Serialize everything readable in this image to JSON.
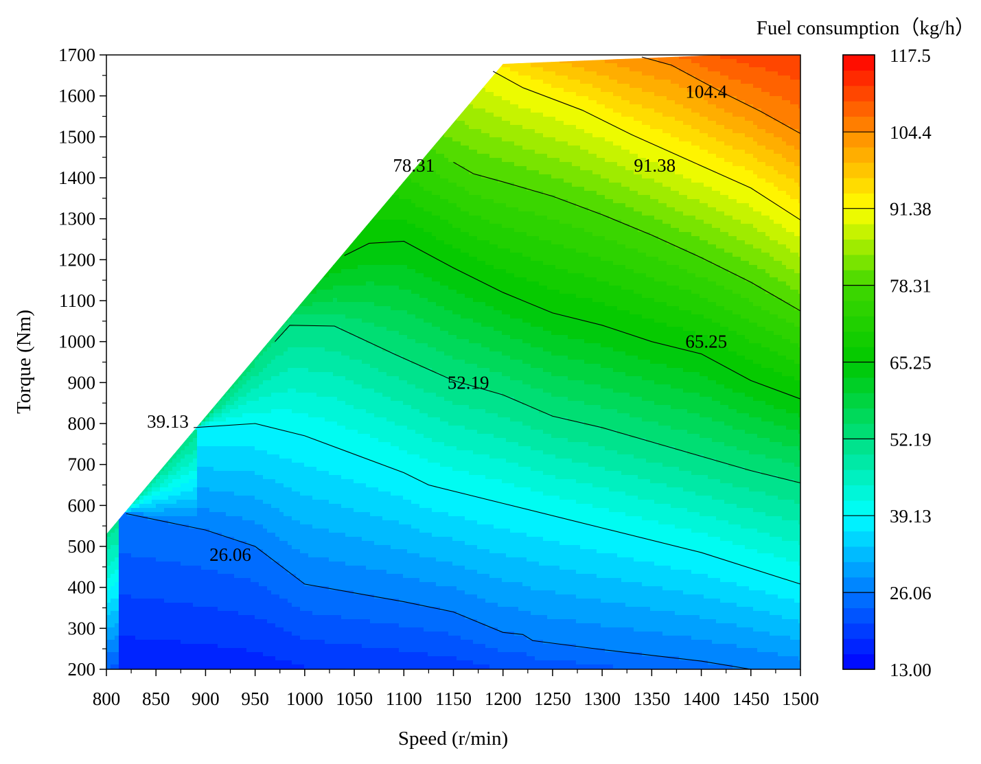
{
  "chart_data": {
    "type": "heatmap",
    "subtype": "filled-contour",
    "xlabel": "Speed (r/min)",
    "ylabel": "Torque (Nm)",
    "xlim": [
      800,
      1500
    ],
    "ylim": [
      200,
      1700
    ],
    "x_ticks": [
      "800",
      "850",
      "900",
      "950",
      "1000",
      "1050",
      "1100",
      "1150",
      "1200",
      "1250",
      "1300",
      "1350",
      "1400",
      "1450",
      "1500"
    ],
    "y_ticks": [
      "200",
      "300",
      "400",
      "500",
      "600",
      "700",
      "800",
      "900",
      "1000",
      "1100",
      "1200",
      "1300",
      "1400",
      "1500",
      "1600",
      "1700"
    ],
    "colorbar": {
      "title": "Fuel consumption（kg/h）",
      "min": 13.0,
      "max": 117.5,
      "tick_values": [
        13.0,
        26.06,
        39.13,
        52.19,
        65.25,
        78.31,
        91.38,
        104.4,
        117.5
      ],
      "tick_labels": [
        "13.00",
        "26.06",
        "39.13",
        "52.19",
        "65.25",
        "78.31",
        "91.38",
        "104.4",
        "117.5"
      ],
      "colors": [
        "#0000ff",
        "#0078ff",
        "#00ffff",
        "#00e080",
        "#00c800",
        "#40d800",
        "#ffff00",
        "#ff8c00",
        "#ff0000"
      ]
    },
    "boundary": [
      [
        800,
        200
      ],
      [
        800,
        530
      ],
      [
        1200,
        1678
      ],
      [
        1500,
        1708
      ],
      [
        1500,
        200
      ]
    ],
    "contours": [
      {
        "level": 26.06,
        "label": "26.06",
        "label_at": [
          925,
          480
        ],
        "points": [
          [
            820,
            580
          ],
          [
            900,
            540
          ],
          [
            950,
            500
          ],
          [
            1000,
            408
          ],
          [
            1100,
            365
          ],
          [
            1150,
            340
          ],
          [
            1200,
            290
          ],
          [
            1220,
            285
          ],
          [
            1230,
            270
          ],
          [
            1300,
            248
          ],
          [
            1400,
            220
          ],
          [
            1450,
            200
          ]
        ]
      },
      {
        "level": 39.13,
        "label": "39.13",
        "label_at": [
          862,
          805
        ],
        "points": [
          [
            888,
            790
          ],
          [
            950,
            800
          ],
          [
            1000,
            770
          ],
          [
            1100,
            680
          ],
          [
            1125,
            650
          ],
          [
            1200,
            605
          ],
          [
            1300,
            545
          ],
          [
            1400,
            485
          ],
          [
            1500,
            408
          ]
        ]
      },
      {
        "level": 52.19,
        "label": "52.19",
        "label_at": [
          1165,
          900
        ],
        "points": [
          [
            970,
            1000
          ],
          [
            985,
            1040
          ],
          [
            1030,
            1038
          ],
          [
            1090,
            970
          ],
          [
            1150,
            905
          ],
          [
            1200,
            870
          ],
          [
            1250,
            818
          ],
          [
            1300,
            790
          ],
          [
            1350,
            755
          ],
          [
            1400,
            720
          ],
          [
            1450,
            685
          ],
          [
            1500,
            655
          ]
        ]
      },
      {
        "level": 65.25,
        "label": "65.25",
        "label_at": [
          1405,
          1000
        ],
        "points": [
          [
            1040,
            1210
          ],
          [
            1065,
            1240
          ],
          [
            1100,
            1245
          ],
          [
            1150,
            1180
          ],
          [
            1200,
            1120
          ],
          [
            1250,
            1070
          ],
          [
            1300,
            1040
          ],
          [
            1350,
            1000
          ],
          [
            1400,
            970
          ],
          [
            1450,
            905
          ],
          [
            1500,
            860
          ]
        ]
      },
      {
        "level": 78.31,
        "label": "78.31",
        "label_at": [
          1110,
          1430
        ],
        "points": [
          [
            1150,
            1438
          ],
          [
            1170,
            1410
          ],
          [
            1200,
            1390
          ],
          [
            1250,
            1355
          ],
          [
            1300,
            1310
          ],
          [
            1350,
            1260
          ],
          [
            1400,
            1205
          ],
          [
            1450,
            1145
          ],
          [
            1500,
            1075
          ]
        ]
      },
      {
        "level": 91.38,
        "label": "91.38",
        "label_at": [
          1353,
          1430
        ],
        "points": [
          [
            1190,
            1660
          ],
          [
            1220,
            1620
          ],
          [
            1280,
            1565
          ],
          [
            1330,
            1505
          ],
          [
            1390,
            1440
          ],
          [
            1450,
            1375
          ],
          [
            1500,
            1297
          ]
        ]
      },
      {
        "level": 104.4,
        "label": "104.4",
        "label_at": [
          1405,
          1610
        ],
        "points": [
          [
            1340,
            1695
          ],
          [
            1370,
            1675
          ],
          [
            1420,
            1610
          ],
          [
            1460,
            1562
          ],
          [
            1500,
            1508
          ]
        ]
      }
    ]
  }
}
